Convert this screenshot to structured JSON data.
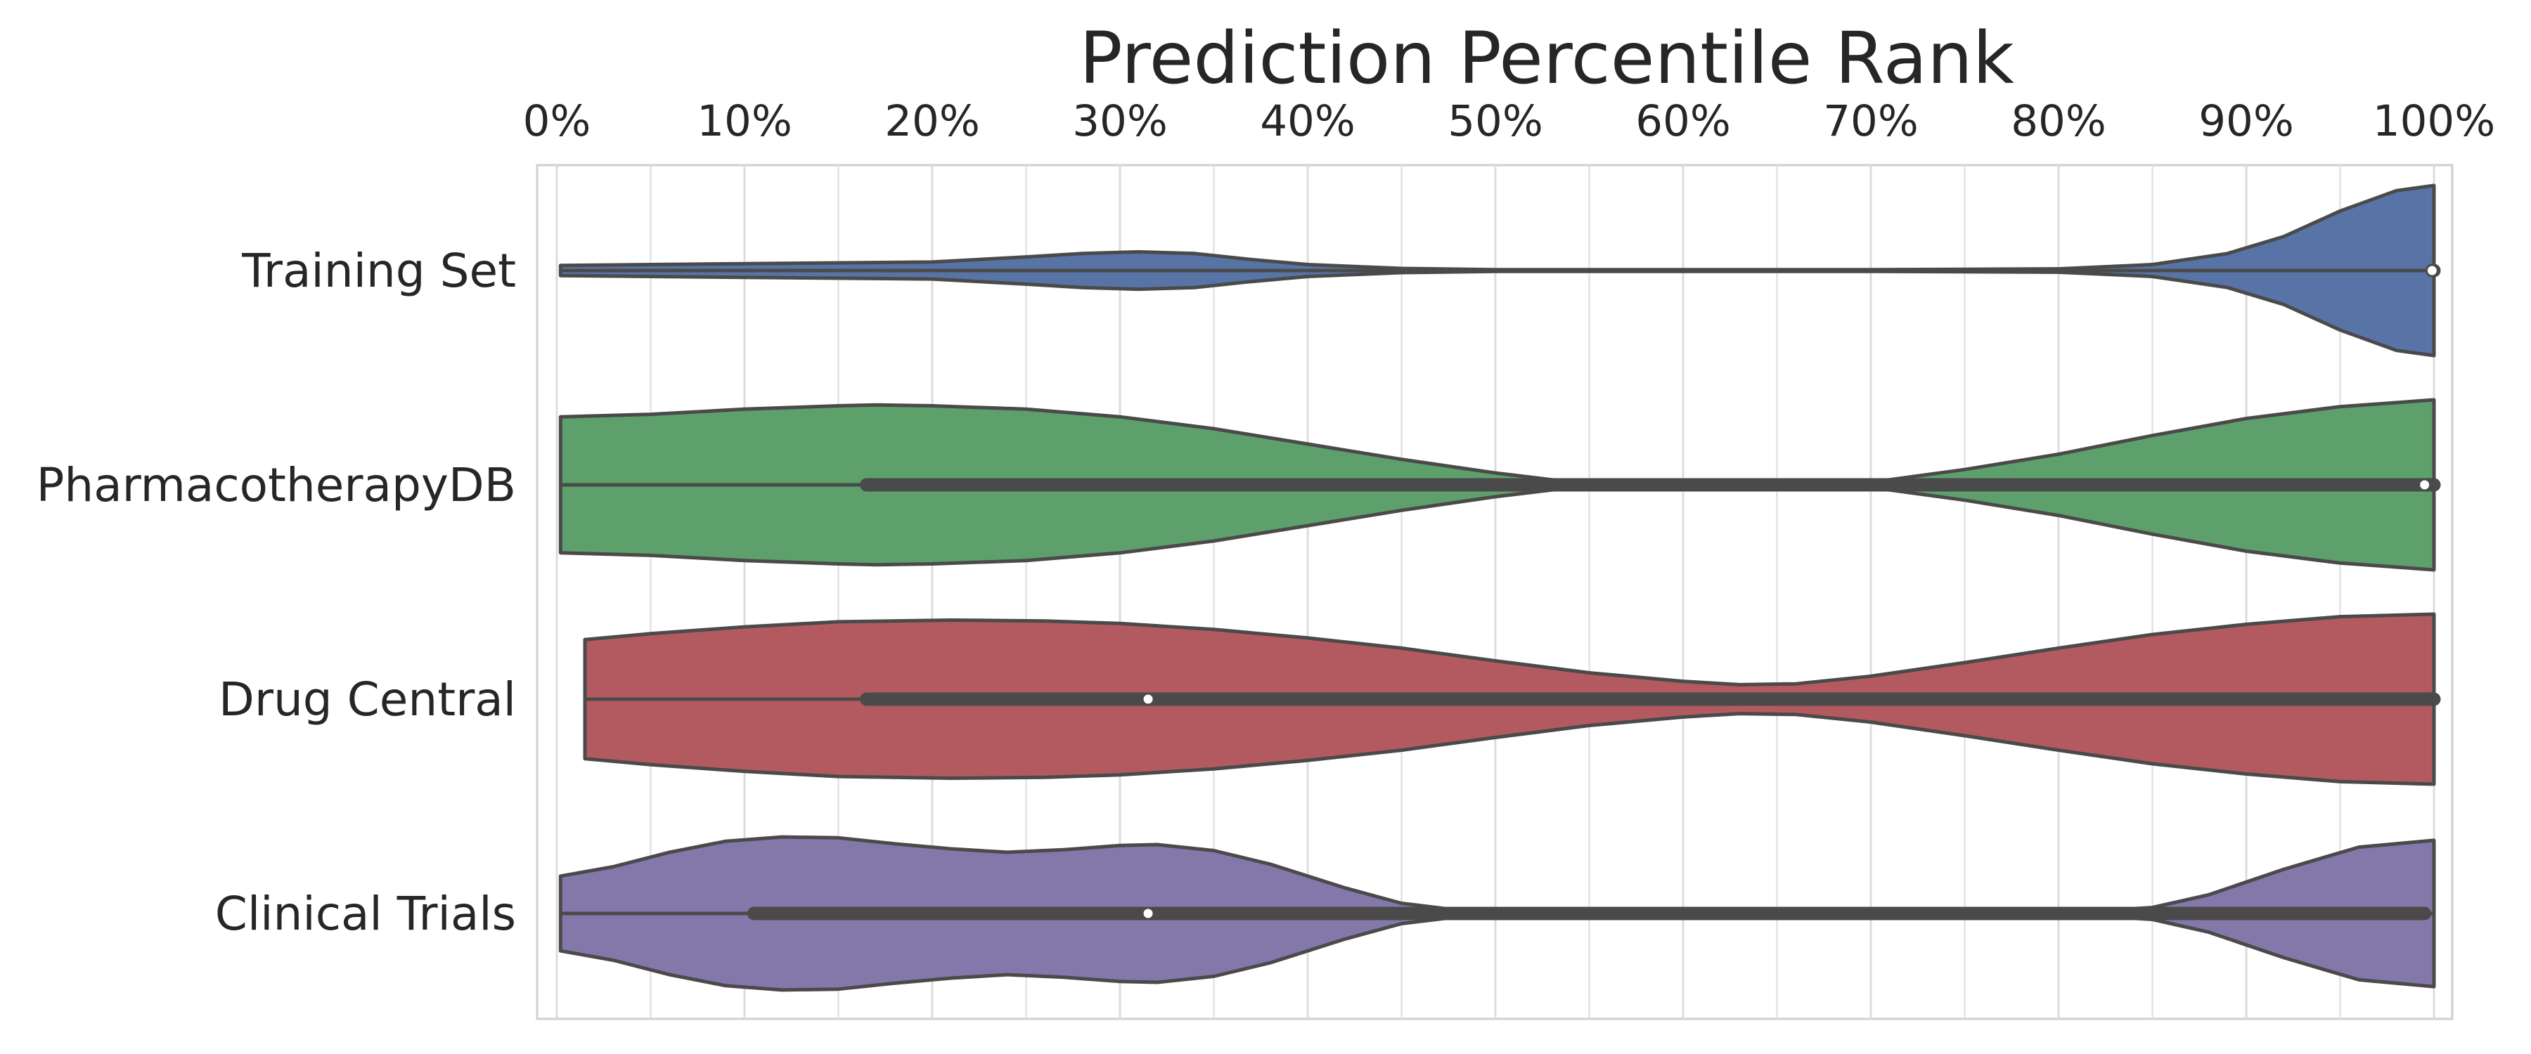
{
  "chart_data": {
    "type": "violin",
    "title": "Prediction Percentile Rank",
    "xlabel": "",
    "ylabel": "",
    "xlim": [
      0,
      100
    ],
    "x_ticks": [
      "0%",
      "10%",
      "20%",
      "30%",
      "40%",
      "50%",
      "60%",
      "70%",
      "80%",
      "90%",
      "100%"
    ],
    "x_tick_values": [
      0,
      10,
      20,
      30,
      40,
      50,
      60,
      70,
      80,
      90,
      100
    ],
    "minor_gridlines_every": 5,
    "grid": true,
    "colors": {
      "text": "#262626",
      "grid": "#dcdcdc",
      "box": "#4a4a4a",
      "frame": "#cfcfcf"
    },
    "series": [
      {
        "name": "Training Set",
        "color": "#5874a6",
        "min": 0.2,
        "max": 100,
        "q1": 99.9,
        "median": 99.9,
        "q3": 100,
        "width_profile": [
          [
            0.2,
            0.06
          ],
          [
            5,
            0.07
          ],
          [
            10,
            0.08
          ],
          [
            20,
            0.1
          ],
          [
            25,
            0.16
          ],
          [
            28,
            0.2
          ],
          [
            31,
            0.22
          ],
          [
            34,
            0.2
          ],
          [
            37,
            0.13
          ],
          [
            40,
            0.07
          ],
          [
            45,
            0.025
          ],
          [
            50,
            0.01
          ],
          [
            60,
            0.01
          ],
          [
            70,
            0.01
          ],
          [
            80,
            0.02
          ],
          [
            85,
            0.07
          ],
          [
            89,
            0.2
          ],
          [
            92,
            0.4
          ],
          [
            95,
            0.7
          ],
          [
            98,
            0.94
          ],
          [
            100,
            1.0
          ]
        ]
      },
      {
        "name": "PharmacotherapyDB",
        "color": "#5ea06c",
        "min": 0.2,
        "max": 100,
        "q1": 16.5,
        "median": 99.5,
        "q3": 100,
        "width_profile": [
          [
            0.2,
            0.8
          ],
          [
            5,
            0.83
          ],
          [
            10,
            0.89
          ],
          [
            15,
            0.93
          ],
          [
            17,
            0.94
          ],
          [
            20,
            0.93
          ],
          [
            25,
            0.89
          ],
          [
            30,
            0.8
          ],
          [
            35,
            0.66
          ],
          [
            40,
            0.48
          ],
          [
            45,
            0.3
          ],
          [
            50,
            0.14
          ],
          [
            53,
            0.06
          ],
          [
            56,
            0.03
          ],
          [
            62,
            0.03
          ],
          [
            68,
            0.03
          ],
          [
            71,
            0.06
          ],
          [
            75,
            0.18
          ],
          [
            80,
            0.36
          ],
          [
            85,
            0.58
          ],
          [
            90,
            0.78
          ],
          [
            95,
            0.92
          ],
          [
            100,
            1.0
          ]
        ]
      },
      {
        "name": "Drug Central",
        "color": "#b35a60",
        "min": 1.5,
        "max": 100,
        "q1": 16.5,
        "median": 31.5,
        "q3": 100,
        "width_profile": [
          [
            1.5,
            0.7
          ],
          [
            5,
            0.77
          ],
          [
            10,
            0.85
          ],
          [
            15,
            0.91
          ],
          [
            21,
            0.93
          ],
          [
            26,
            0.92
          ],
          [
            30,
            0.89
          ],
          [
            35,
            0.82
          ],
          [
            40,
            0.72
          ],
          [
            45,
            0.6
          ],
          [
            50,
            0.45
          ],
          [
            55,
            0.31
          ],
          [
            60,
            0.21
          ],
          [
            63,
            0.17
          ],
          [
            66,
            0.18
          ],
          [
            70,
            0.27
          ],
          [
            75,
            0.43
          ],
          [
            80,
            0.6
          ],
          [
            85,
            0.76
          ],
          [
            90,
            0.88
          ],
          [
            95,
            0.97
          ],
          [
            100,
            1.0
          ]
        ]
      },
      {
        "name": "Clinical Trials",
        "color": "#8478ab",
        "min": 0.2,
        "max": 100,
        "q1": 10.5,
        "median": 31.5,
        "q3": 99.5,
        "width_profile": [
          [
            0.2,
            0.44
          ],
          [
            3,
            0.55
          ],
          [
            6,
            0.72
          ],
          [
            9,
            0.85
          ],
          [
            12,
            0.9
          ],
          [
            15,
            0.89
          ],
          [
            18,
            0.82
          ],
          [
            21,
            0.76
          ],
          [
            24,
            0.72
          ],
          [
            27,
            0.75
          ],
          [
            30,
            0.8
          ],
          [
            32,
            0.81
          ],
          [
            35,
            0.74
          ],
          [
            38,
            0.58
          ],
          [
            42,
            0.3
          ],
          [
            45,
            0.12
          ],
          [
            48,
            0.04
          ],
          [
            55,
            0.02
          ],
          [
            65,
            0.02
          ],
          [
            75,
            0.02
          ],
          [
            82,
            0.03
          ],
          [
            85,
            0.07
          ],
          [
            88,
            0.22
          ],
          [
            92,
            0.52
          ],
          [
            96,
            0.78
          ],
          [
            100,
            0.86
          ]
        ]
      }
    ]
  }
}
